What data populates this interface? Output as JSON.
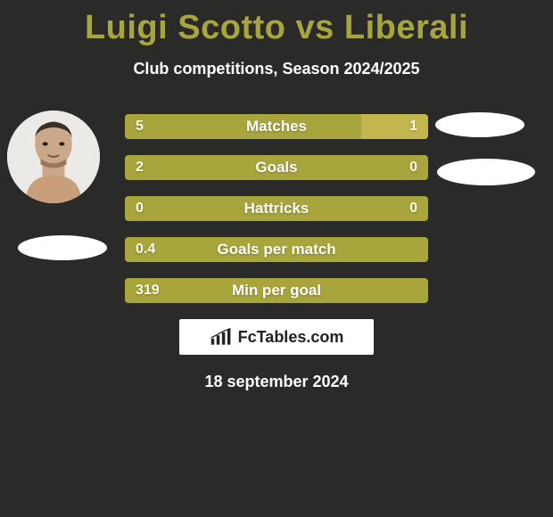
{
  "header": {
    "player1": "Luigi Scotto",
    "vs": "vs",
    "player2": "Liberali"
  },
  "subtitle": "Club competitions, Season 2024/2025",
  "colors": {
    "accent_primary": "#a7a53b",
    "accent_secondary": "#c4b64f",
    "background": "#2a2a28",
    "text": "#ffffff",
    "ellipse": "#ffffff"
  },
  "stats": [
    {
      "label": "Matches",
      "left_val": "5",
      "right_val": "1",
      "left_pct": 78,
      "right_pct": 22
    },
    {
      "label": "Goals",
      "left_val": "2",
      "right_val": "0",
      "left_pct": 100,
      "right_pct": 0
    },
    {
      "label": "Hattricks",
      "left_val": "0",
      "right_val": "0",
      "left_pct": 100,
      "right_pct": 0
    },
    {
      "label": "Goals per match",
      "left_val": "0.4",
      "right_val": "",
      "left_pct": 100,
      "right_pct": 0
    },
    {
      "label": "Min per goal",
      "left_val": "319",
      "right_val": "",
      "left_pct": 100,
      "right_pct": 0
    }
  ],
  "footer": {
    "brand": "FcTables.com",
    "date": "18 september 2024"
  }
}
